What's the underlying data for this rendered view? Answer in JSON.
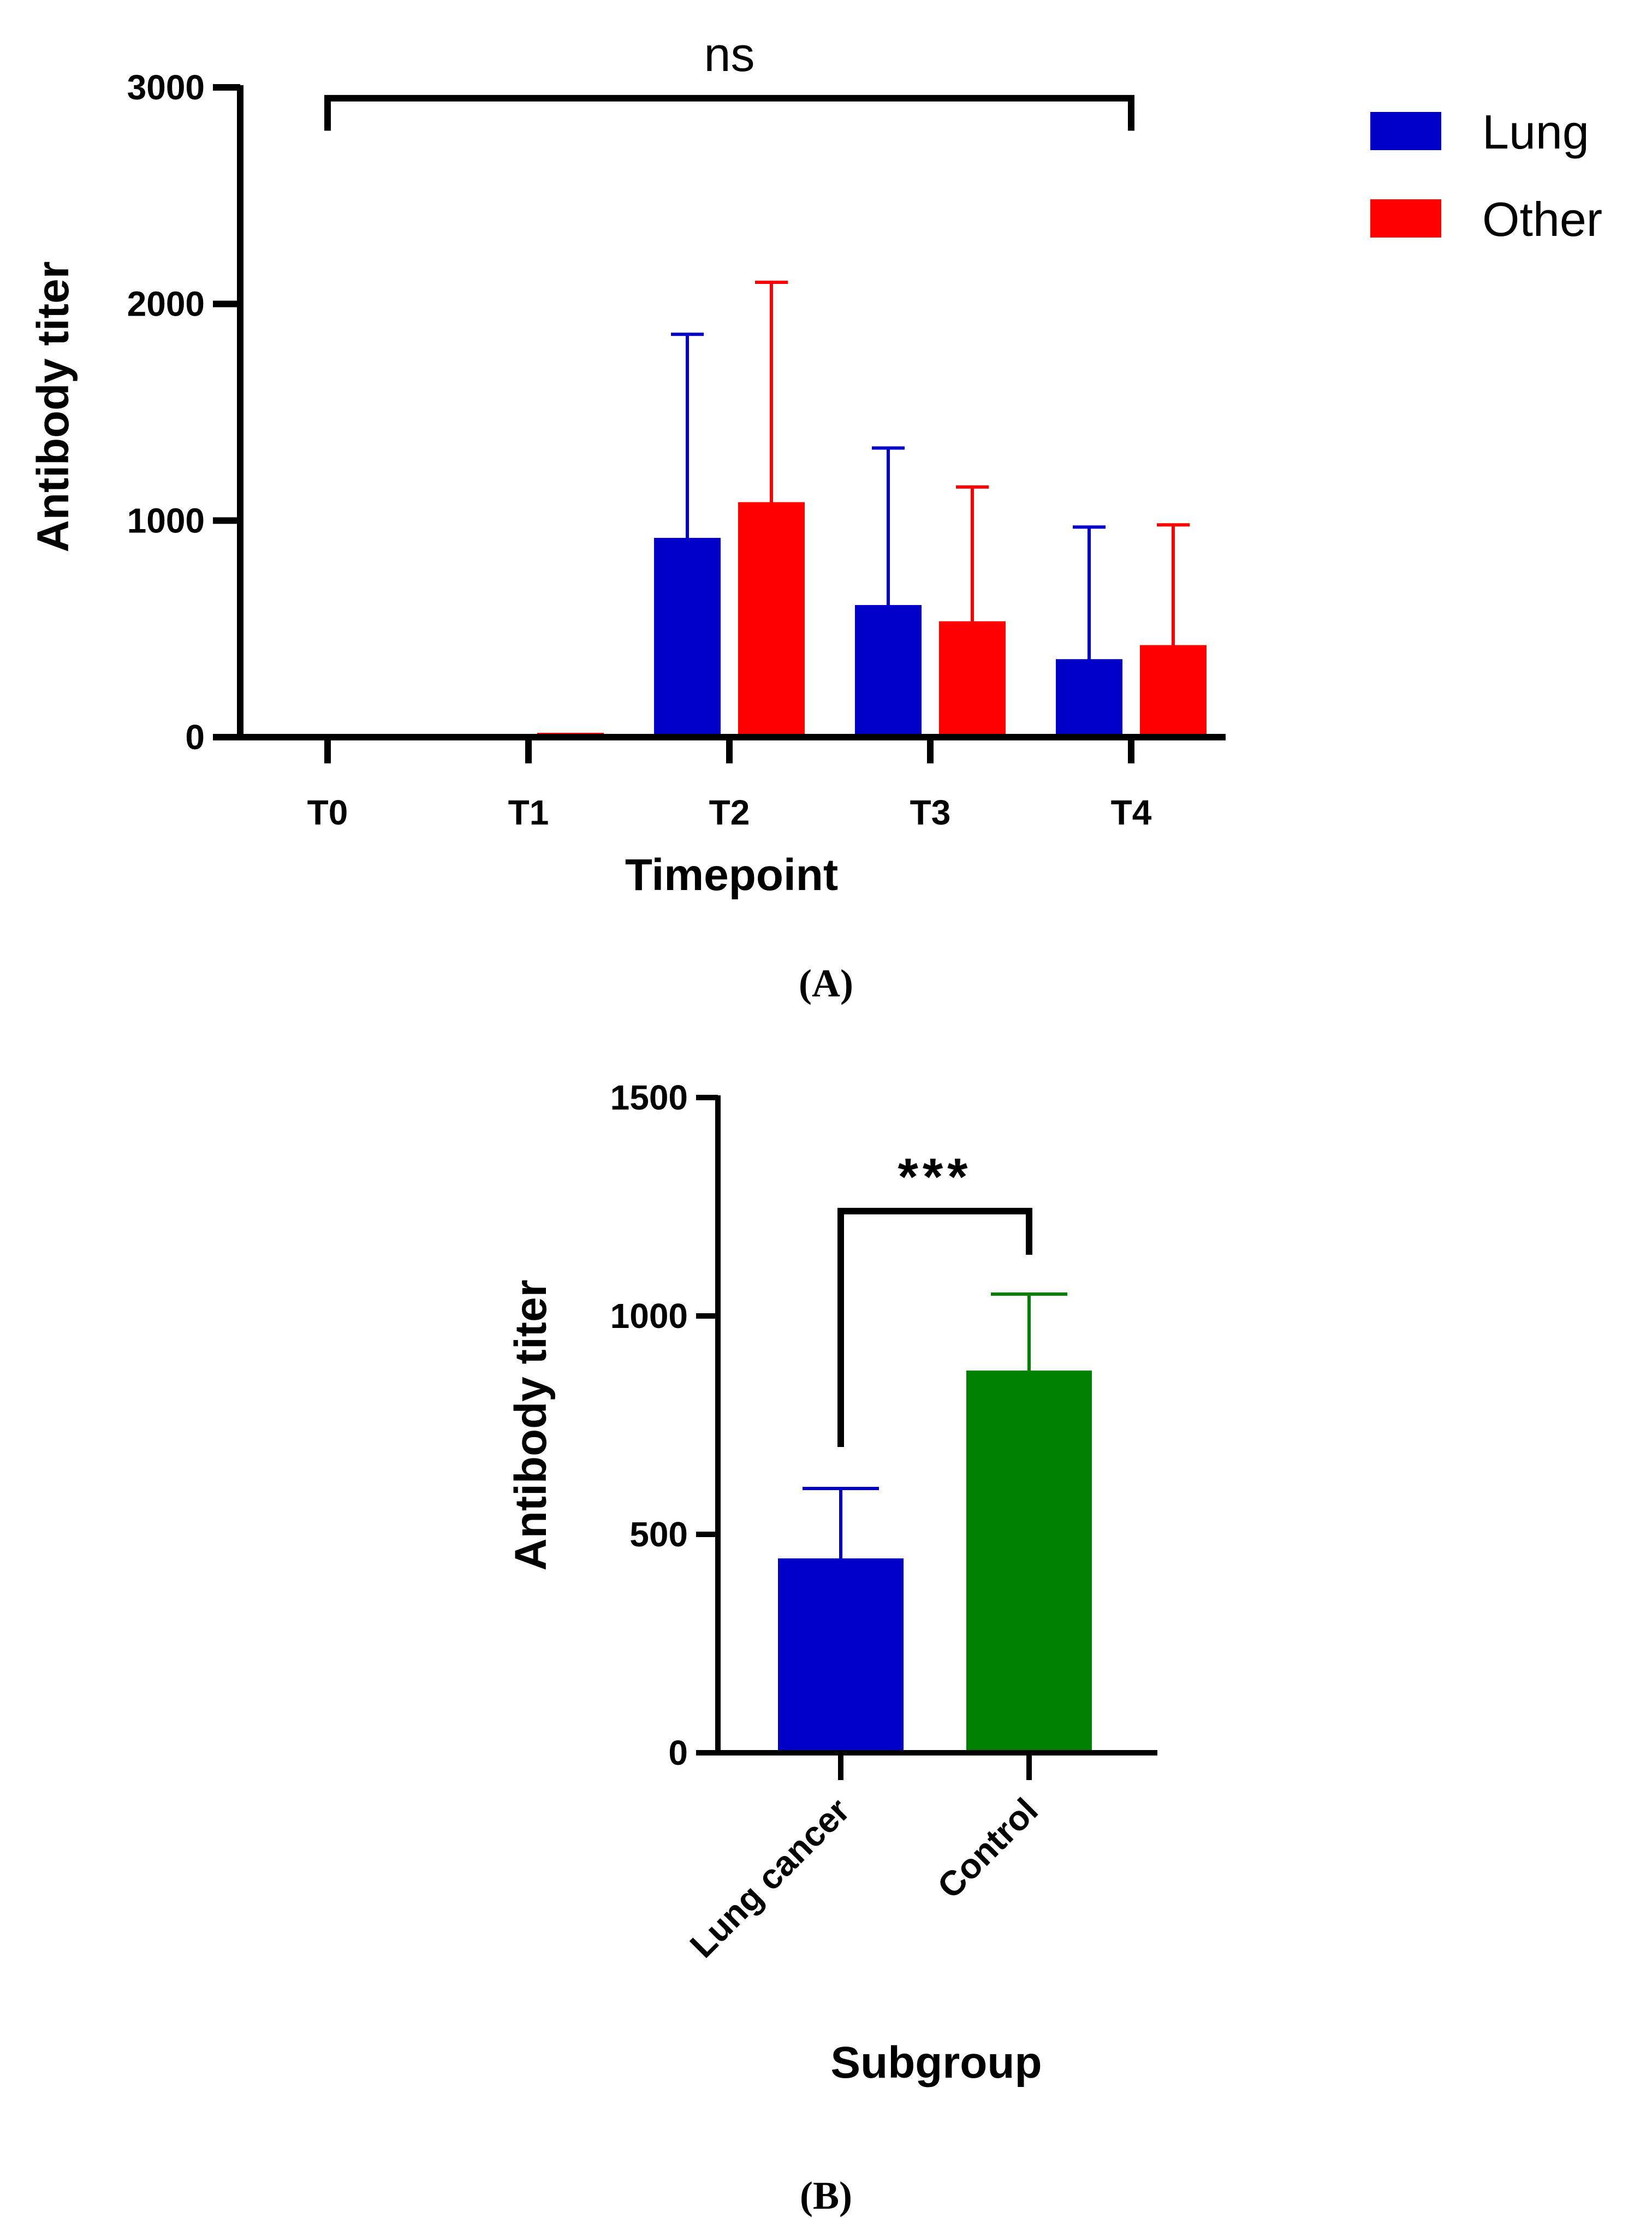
{
  "colors": {
    "lung": "#0000c8",
    "other": "#ff0000",
    "control": "#008000",
    "axis": "#000000"
  },
  "chart_data": [
    {
      "panel": "(A)",
      "type": "bar",
      "title": "",
      "xlabel": "Timepoint",
      "ylabel": "Antibody titer",
      "ylim": [
        0,
        3000
      ],
      "yticks": [
        "0",
        "1000",
        "2000",
        "3000"
      ],
      "categories": [
        "T0",
        "T1",
        "T2",
        "T3",
        "T4"
      ],
      "legend_position": "top-right",
      "series": [
        {
          "name": "Lung",
          "color": "#0000c8",
          "values": [
            0,
            15,
            920,
            610,
            360
          ],
          "error_upper": [
            0,
            0,
            1860,
            1335,
            970
          ]
        },
        {
          "name": "Other",
          "color": "#ff0000",
          "values": [
            0,
            20,
            1085,
            535,
            425
          ],
          "error_upper": [
            0,
            0,
            2100,
            1155,
            980
          ]
        }
      ],
      "annotation": {
        "text": "ns",
        "from": "T0",
        "to": "T4",
        "y": 2950,
        "drop_to": 2800
      }
    },
    {
      "panel": "(B)",
      "type": "bar",
      "title": "",
      "xlabel": "Subgroup",
      "ylabel": "Antibody titer",
      "ylim": [
        0,
        1500
      ],
      "yticks": [
        "0",
        "500",
        "1000",
        "1500"
      ],
      "categories": [
        "Lung cancer",
        "Control"
      ],
      "values": [
        445,
        875
      ],
      "colors": [
        "#0000c8",
        "#008000"
      ],
      "error_upper": [
        605,
        1050
      ],
      "annotation": {
        "text": "***",
        "from": "Lung cancer",
        "to": "Control",
        "y": 1240,
        "left_drop_to": 700,
        "right_drop_to": 1140
      }
    }
  ]
}
